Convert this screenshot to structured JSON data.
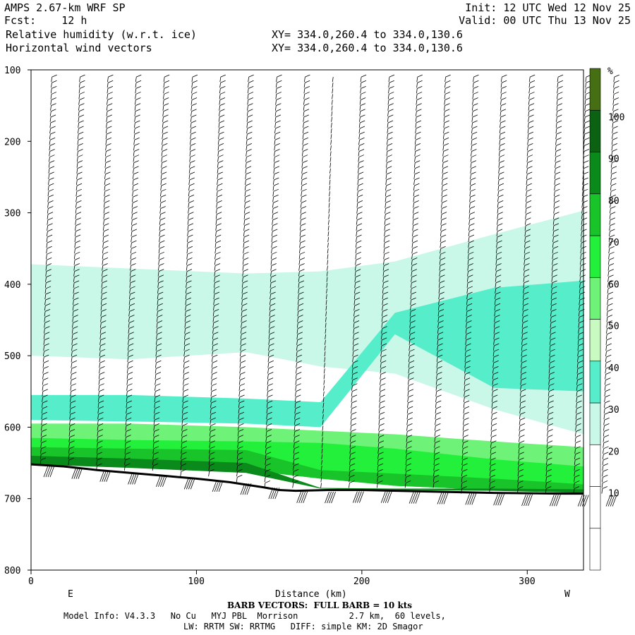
{
  "header": {
    "model": "AMPS 2.67-km WRF SP",
    "fcst": "Fcst:    12 h",
    "var1": "Relative humidity (w.r.t. ice)",
    "var2": "Horizontal wind vectors",
    "init": "Init: 12 UTC Wed 12 Nov 25",
    "valid": "Valid: 00 UTC Thu 13 Nov 25",
    "xy1": "XY= 334.0,260.4 to 334.0,130.6",
    "xy2": "XY= 334.0,260.4 to 334.0,130.6"
  },
  "chart_data": {
    "type": "heatmap",
    "title": "Relative humidity (w.r.t. ice)",
    "xlabel": "Distance (km)",
    "ylabel": "",
    "xlim": [
      0,
      334
    ],
    "ylim": [
      800,
      100
    ],
    "x_ticks": [
      "0",
      "100",
      "200",
      "300"
    ],
    "x_tick_values": [
      0,
      100,
      200,
      300
    ],
    "y_ticks": [
      "100",
      "200",
      "300",
      "400",
      "500",
      "600",
      "700",
      "800"
    ],
    "y_tick_values": [
      100,
      200,
      300,
      400,
      500,
      600,
      700,
      800
    ],
    "left_end_label": "E",
    "right_end_label": "W",
    "colorbar": {
      "unit": "%",
      "levels": [
        10,
        20,
        30,
        40,
        50,
        60,
        70,
        80,
        90,
        100
      ],
      "colors": [
        "#ffffff",
        "#ffffff",
        "#ffffff",
        "#c9f7e8",
        "#55edca",
        "#c9fac2",
        "#6ef278",
        "#23f03a",
        "#18c42a",
        "#0a8a1b",
        "#0b6212",
        "#466e12"
      ]
    },
    "terrain_surface_hpa": {
      "x": [
        0,
        20,
        40,
        60,
        80,
        100,
        120,
        140,
        150,
        160,
        180,
        200,
        240,
        280,
        320,
        334
      ],
      "p": [
        652,
        655,
        660,
        664,
        668,
        672,
        677,
        684,
        688,
        689,
        688,
        688,
        690,
        692,
        693,
        693
      ]
    },
    "rh_layers": [
      {
        "level": 40,
        "x": [
          0,
          60,
          130,
          175,
          220,
          280,
          334
        ],
        "top": [
          372,
          378,
          385,
          382,
          368,
          330,
          297
        ],
        "bottom": [
          500,
          505,
          495,
          515,
          525,
          575,
          610
        ]
      },
      {
        "level": 50,
        "x": [
          0,
          60,
          130,
          175,
          220,
          280,
          334
        ],
        "top": [
          555,
          555,
          560,
          565,
          440,
          405,
          395
        ],
        "bottom": [
          590,
          592,
          595,
          600,
          470,
          545,
          550
        ]
      },
      {
        "level": 60,
        "x": [
          0,
          60,
          130,
          175,
          220,
          280,
          334
        ],
        "top": [
          595,
          595,
          600,
          605,
          610,
          620,
          628
        ],
        "bottom": [
          650,
          655,
          660,
          672,
          682,
          688,
          692
        ]
      },
      {
        "level": 70,
        "x": [
          0,
          60,
          130,
          175,
          220,
          280,
          334
        ],
        "top": [
          615,
          618,
          620,
          622,
          630,
          645,
          655
        ],
        "bottom": [
          650,
          655,
          660,
          672,
          682,
          688,
          692
        ]
      },
      {
        "level": 80,
        "x": [
          0,
          60,
          130,
          175,
          220,
          280,
          334
        ],
        "top": [
          628,
          630,
          632,
          660,
          665,
          672,
          680
        ],
        "bottom": [
          650,
          655,
          660,
          672,
          682,
          688,
          692
        ]
      },
      {
        "level": 90,
        "x": [
          0,
          60,
          130,
          175,
          220,
          280,
          334
        ],
        "top": [
          640,
          644,
          650,
          685,
          686,
          686,
          687
        ],
        "bottom": [
          652,
          657,
          664,
          686,
          688,
          689,
          692
        ]
      }
    ],
    "barb_columns_km": [
      0,
      17,
      34,
      51,
      68,
      85,
      102,
      119,
      136,
      153,
      170,
      187,
      204,
      221,
      238,
      255,
      272,
      289,
      306,
      323,
      340
    ]
  },
  "footer": {
    "barb_note": "BARB VECTORS:  FULL BARB = 10 kts",
    "model_info": "Model Info: V4.3.3   No Cu   MYJ PBL  Morrison          2.7 km,  60 levels,",
    "model_info2": "LW: RRTM SW: RRTMG   DIFF: simple KM: 2D Smagor"
  }
}
